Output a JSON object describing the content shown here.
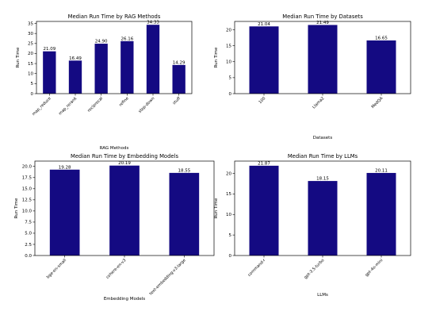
{
  "chart_data": [
    {
      "type": "bar",
      "title": "Median Run Time by RAG Methods",
      "xlabel": "RAG Methods",
      "ylabel": "Run Time",
      "categories": [
        "map_reduce",
        "map_rerank",
        "reciprocal",
        "refine",
        "step-down",
        "stuff"
      ],
      "values": [
        21.09,
        16.49,
        24.9,
        26.16,
        34.33,
        14.29
      ],
      "value_labels": [
        "21.09",
        "16.49",
        "24.90",
        "26.16",
        "34.33",
        "14.29"
      ],
      "ylim": [
        0,
        36
      ],
      "yticks": [
        0,
        5,
        10,
        15,
        20,
        25,
        30,
        35
      ],
      "bar_color": "#140a82",
      "grid": false
    },
    {
      "type": "bar",
      "title": "Median Run Time by Datasets",
      "xlabel": "Datasets",
      "ylabel": "Run Time",
      "categories": [
        "100",
        "Llama2",
        "MedQA"
      ],
      "values": [
        21.04,
        21.49,
        16.65
      ],
      "value_labels": [
        "21.04",
        "21.49",
        "16.65"
      ],
      "ylim": [
        0,
        22.6
      ],
      "yticks": [
        0,
        5,
        10,
        15,
        20
      ],
      "bar_color": "#140a82",
      "grid": false
    },
    {
      "type": "bar",
      "title": "Median Run Time by Embedding Models",
      "xlabel": "Embedding Models",
      "ylabel": "Run Time",
      "categories": [
        "bge-en-small",
        "cohere-en-v3",
        "text-embedding-v3-large"
      ],
      "values": [
        19.28,
        20.19,
        18.55
      ],
      "value_labels": [
        "19.28",
        "20.19",
        "18.55"
      ],
      "ylim": [
        0,
        21.2
      ],
      "yticks": [
        0.0,
        2.5,
        5.0,
        7.5,
        10.0,
        12.5,
        15.0,
        17.5,
        20.0
      ],
      "ytick_labels": [
        "0.0",
        "2.5",
        "5.0",
        "7.5",
        "10.0",
        "12.5",
        "15.0",
        "17.5",
        "20.0"
      ],
      "bar_color": "#140a82",
      "grid": false
    },
    {
      "type": "bar",
      "title": "Median Run Time by LLMs",
      "xlabel": "LLMs",
      "ylabel": "Run Time",
      "categories": [
        "command-r",
        "gpt-3.5-turbo",
        "gpt-4o-mini"
      ],
      "values": [
        21.87,
        18.15,
        20.11
      ],
      "value_labels": [
        "21.87",
        "18.15",
        "20.11"
      ],
      "ylim": [
        0,
        23
      ],
      "yticks": [
        0,
        5,
        10,
        15,
        20
      ],
      "bar_color": "#140a82",
      "grid": false
    }
  ]
}
